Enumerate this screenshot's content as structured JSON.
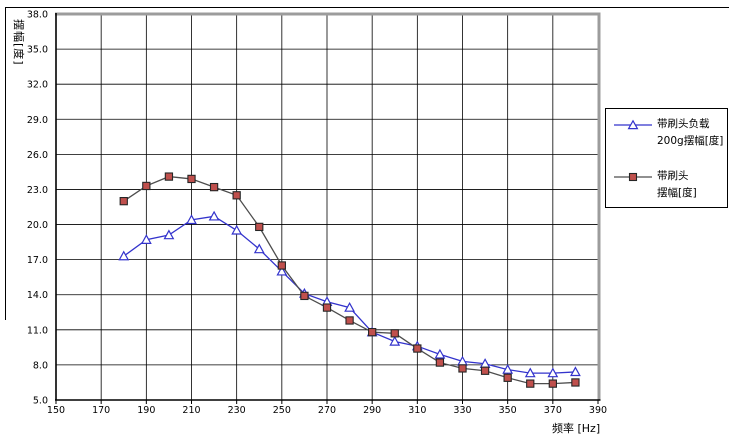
{
  "chart_data": {
    "type": "line",
    "title": "",
    "xlabel": "频率 [Hz]",
    "ylabel": "摆幅[度]",
    "xlim": [
      150,
      390
    ],
    "ylim": [
      5,
      38
    ],
    "xticks": [
      150,
      170,
      190,
      210,
      230,
      250,
      270,
      290,
      310,
      330,
      350,
      370,
      390
    ],
    "yticks": [
      5,
      8,
      11,
      14,
      17,
      20,
      23,
      26,
      29,
      32,
      35,
      38
    ],
    "ytick_labels": [
      "5.0",
      "8.0",
      "11.0",
      "14.0",
      "17.0",
      "20.0",
      "23.0",
      "26.0",
      "29.0",
      "32.0",
      "35.0",
      "38.0"
    ],
    "grid": true,
    "legend_position": "right",
    "x": [
      180,
      190,
      200,
      210,
      220,
      230,
      240,
      250,
      260,
      270,
      280,
      290,
      300,
      310,
      320,
      330,
      340,
      350,
      360,
      370,
      380
    ],
    "series": [
      {
        "name": "带刷头负载200g摆幅[度]",
        "legend_lines": [
          "带刷头负载",
          "200g摆幅[度]"
        ],
        "color": "#3333cc",
        "marker": "triangle",
        "marker_fill": "#ffffff",
        "values": [
          17.3,
          18.7,
          19.1,
          20.4,
          20.7,
          19.5,
          17.9,
          16.0,
          14.1,
          13.4,
          12.9,
          10.8,
          10.0,
          9.6,
          8.9,
          8.3,
          8.1,
          7.6,
          7.3,
          7.3,
          7.4
        ]
      },
      {
        "name": "带刷头摆幅[度]",
        "legend_lines": [
          "带刷头",
          "摆幅[度]"
        ],
        "color": "#4d4d4d",
        "marker": "square",
        "marker_fill": "#c0504d",
        "values": [
          22.0,
          23.3,
          24.1,
          23.9,
          23.2,
          22.5,
          19.8,
          16.5,
          13.9,
          12.9,
          11.8,
          10.8,
          10.7,
          9.4,
          8.2,
          7.7,
          7.5,
          6.9,
          6.4,
          6.4,
          6.5
        ]
      }
    ]
  }
}
